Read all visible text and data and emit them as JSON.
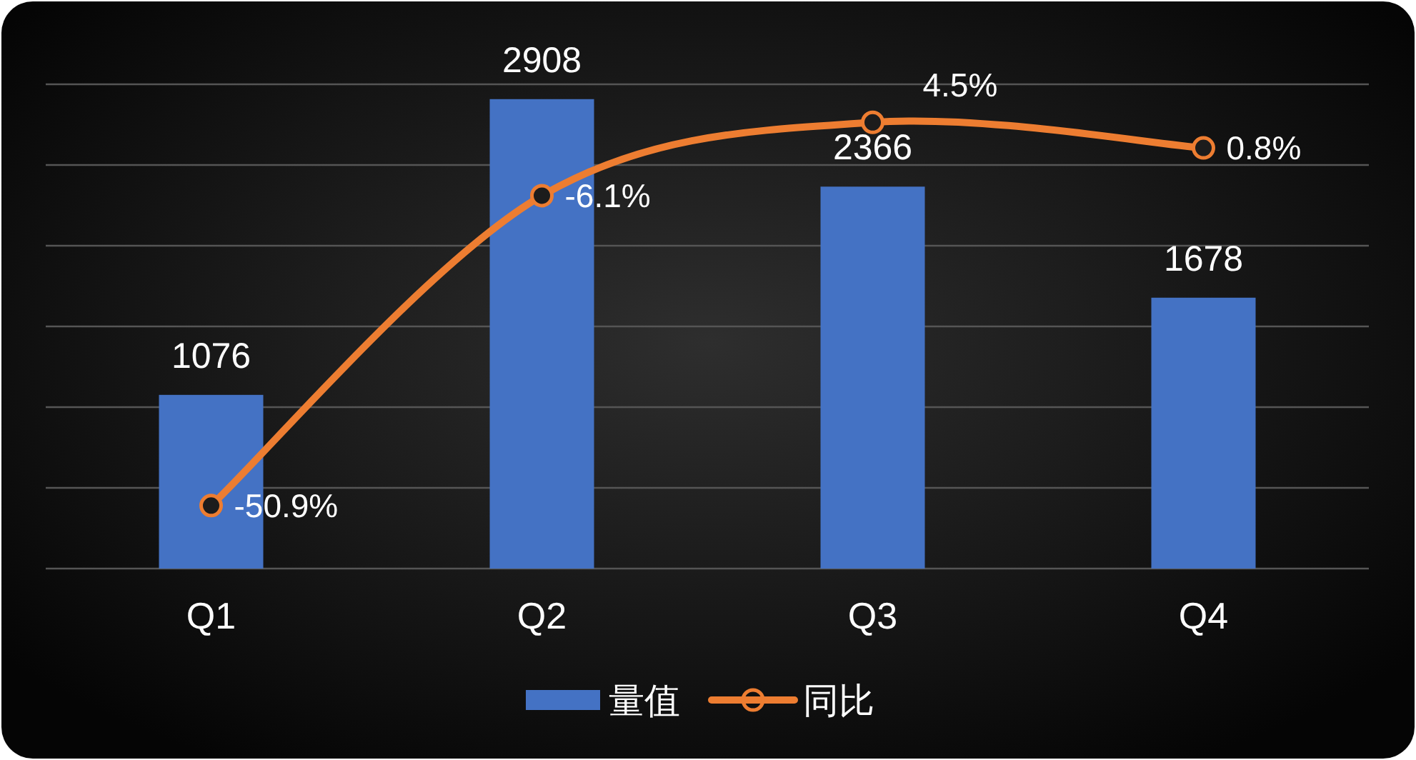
{
  "chart_data": {
    "type": "bar",
    "categories": [
      "Q1",
      "Q2",
      "Q3",
      "Q4"
    ],
    "series": [
      {
        "name": "量值",
        "color": "#4472c4",
        "values": [
          1076,
          2908,
          2366,
          1678
        ],
        "value_labels": [
          "1076",
          "2908",
          "2366",
          "1678"
        ]
      },
      {
        "name": "同比",
        "type": "line",
        "axis": "y2",
        "color": "#ed7d31",
        "marker": "circle",
        "values": [
          -50.9,
          -6.1,
          4.5,
          0.8
        ],
        "value_labels": [
          "-50.9%",
          "-6.1%",
          "4.5%",
          "0.8%"
        ]
      }
    ],
    "grid": "y",
    "tick_labels": "x",
    "legend": "bottom"
  }
}
